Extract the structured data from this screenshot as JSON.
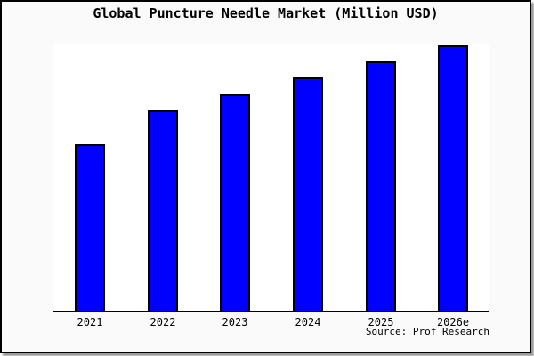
{
  "colors": {
    "bar_fill": "#0000ff",
    "bar_border": "#000000",
    "frame_border": "#000000",
    "background": "#fafafa",
    "plot_background": "#ffffff",
    "text": "#000000"
  },
  "chart_data": {
    "type": "bar",
    "title": "Global Puncture Needle Market (Million USD)",
    "categories": [
      "2021",
      "2022",
      "2023",
      "2024",
      "2025",
      "2026e"
    ],
    "values": [
      62.5,
      75.3,
      81.3,
      87.6,
      93.6,
      99.7
    ],
    "xlabel": "",
    "ylabel": "",
    "ylim": [
      0,
      100
    ],
    "grid": false,
    "legend": false,
    "y_axis_visible": false,
    "source": "Source: Prof Research"
  }
}
